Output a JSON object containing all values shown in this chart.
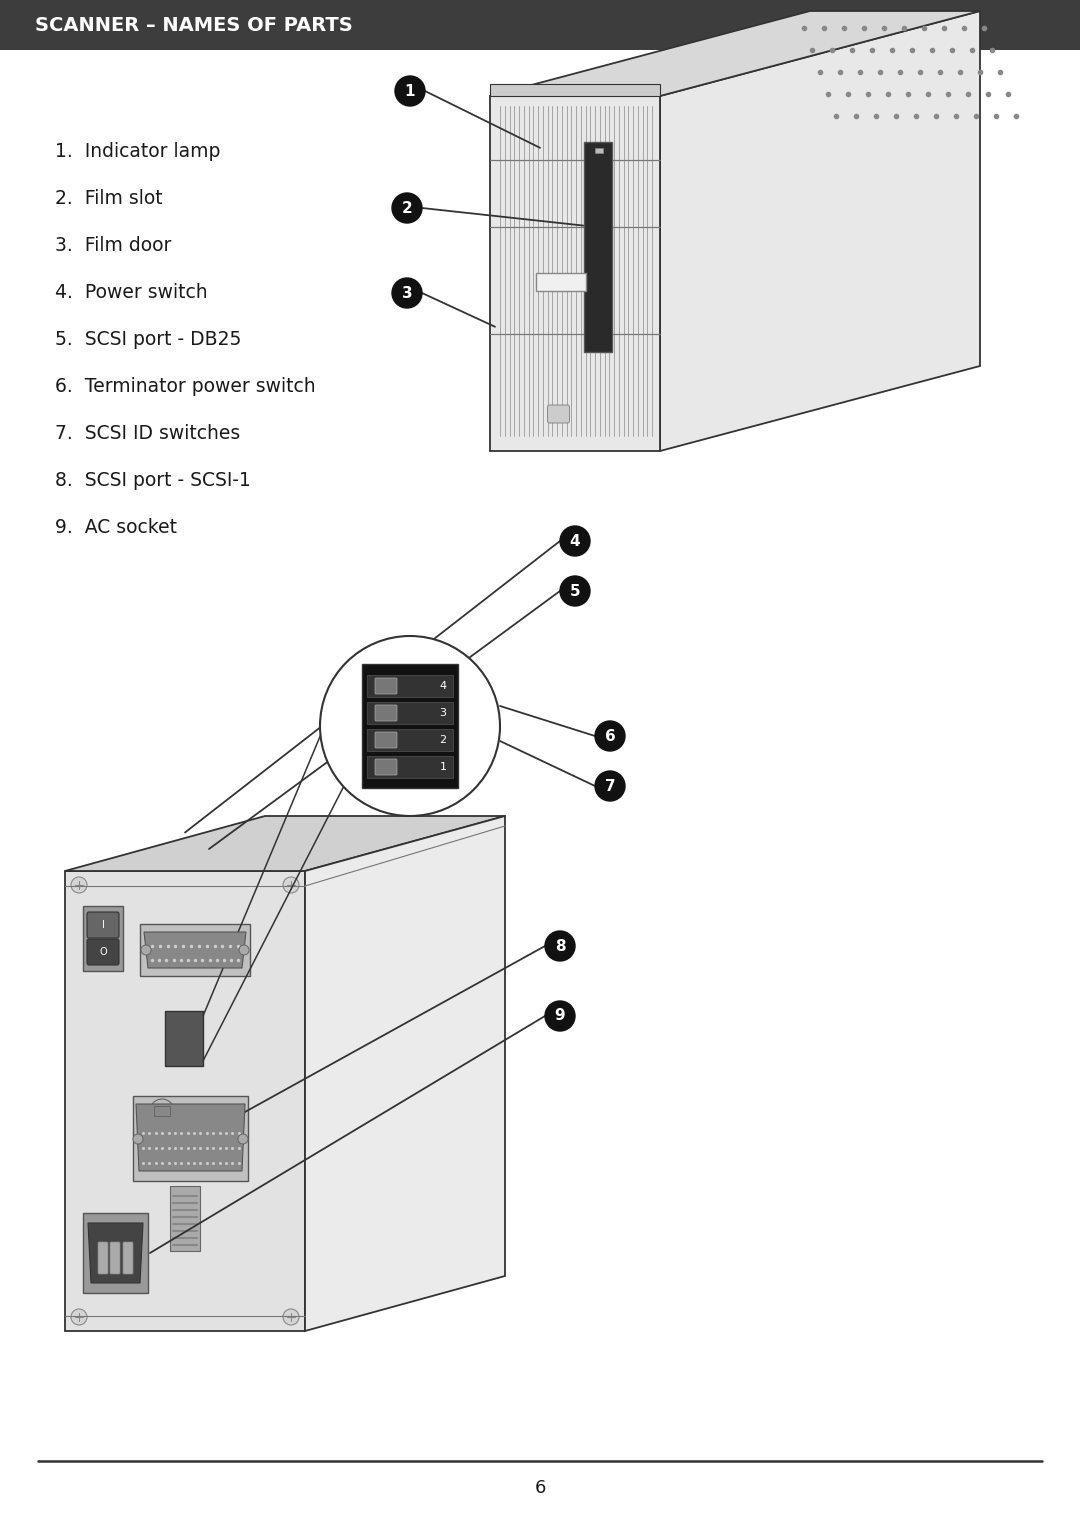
{
  "title": "SCANNER – NAMES OF PARTS",
  "title_bg": "#3d3d3d",
  "title_color": "#ffffff",
  "title_fontsize": 14,
  "bg_color": "#ffffff",
  "page_number": "6",
  "parts_list": [
    "1.  Indicator lamp",
    "2.  Film slot",
    "3.  Film door",
    "4.  Power switch",
    "5.  SCSI port - DB25",
    "6.  Terminator power switch",
    "7.  SCSI ID switches",
    "8.  SCSI port - SCSI-1",
    "9.  AC socket"
  ],
  "bullet_color": "#111111",
  "label_fontsize": 13.5,
  "line_color": "#333333"
}
